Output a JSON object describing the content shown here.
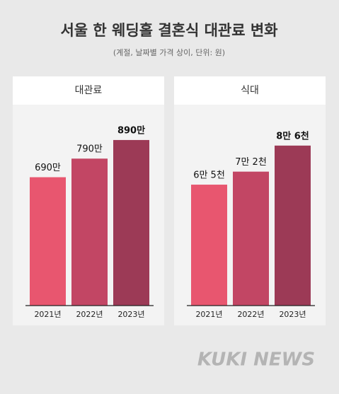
{
  "title": "서울 한 웨딩홀 결혼식 대관료 변화",
  "subtitle": "(계절, 날짜별 가격 상이, 단위: 원)",
  "watermark": "KUKI NEWS",
  "chart_data": [
    {
      "type": "bar",
      "title": "대관료",
      "categories": [
        "2021년",
        "2022년",
        "2023년"
      ],
      "values": [
        690,
        790,
        890
      ],
      "value_labels": [
        "690만",
        "790만",
        "890만"
      ],
      "colors": [
        "#e8566f",
        "#c24664",
        "#9c3a56"
      ],
      "ylim": [
        0,
        1000
      ]
    },
    {
      "type": "bar",
      "title": "식대",
      "categories": [
        "2021년",
        "2022년",
        "2023년"
      ],
      "values": [
        65000,
        72000,
        86000
      ],
      "value_labels": [
        "6만 5천",
        "7만 2천",
        "8만 6천"
      ],
      "colors": [
        "#e8566f",
        "#c24664",
        "#9c3a56"
      ],
      "ylim": [
        0,
        100000
      ]
    }
  ]
}
